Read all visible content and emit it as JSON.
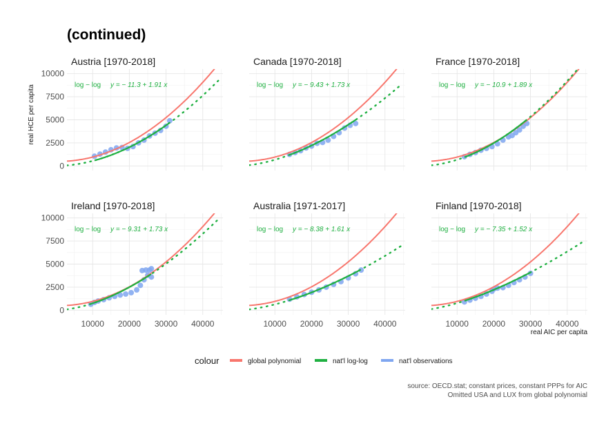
{
  "title": "(continued)",
  "colors": {
    "global_polynomial": "#F8766D",
    "natl_loglog": "#1FB041",
    "natl_obs": "#7FA6F0",
    "grid": "#e6e6e6"
  },
  "chart_data": {
    "type": "line",
    "xlabel": "real AIC per capita",
    "ylabel": "real HCE per capita",
    "xlim": [
      3000,
      45500
    ],
    "ylim": [
      -500,
      10500
    ],
    "x_ticks": [
      10000,
      20000,
      30000,
      40000
    ],
    "x_tick_labels": [
      "10000",
      "20000",
      "30000",
      "40000"
    ],
    "y_ticks": [
      0,
      2500,
      5000,
      7500,
      10000
    ],
    "y_tick_labels": [
      "0",
      "2500",
      "5000",
      "7500",
      "10000"
    ],
    "global_polynomial": {
      "description": "quadratic fit",
      "coef": [
        500,
        -0.01,
        5.6e-06
      ]
    },
    "panels": [
      {
        "strip": "Austria [1970-2018]",
        "eq_label": "log − log",
        "eq": "y = − 11.3 + 1.91 x",
        "a": -11.3,
        "b": 1.91,
        "obs_range": [
          10500,
          31000
        ],
        "obs_points": [
          [
            10500,
            1050
          ],
          [
            12000,
            1280
          ],
          [
            13500,
            1500
          ],
          [
            15000,
            1750
          ],
          [
            16500,
            1950
          ],
          [
            18000,
            2000
          ],
          [
            19500,
            1900
          ],
          [
            21000,
            2100
          ],
          [
            22500,
            2500
          ],
          [
            24000,
            2800
          ],
          [
            25500,
            3250
          ],
          [
            27000,
            3550
          ],
          [
            28500,
            3850
          ],
          [
            30000,
            4300
          ],
          [
            31000,
            4900
          ]
        ]
      },
      {
        "strip": "Canada [1970-2018]",
        "eq_label": "log − log",
        "eq": "y = − 9.43 + 1.73 x",
        "a": -9.43,
        "b": 1.73,
        "obs_range": [
          14000,
          32000
        ],
        "obs_points": [
          [
            14000,
            1250
          ],
          [
            15500,
            1450
          ],
          [
            17000,
            1650
          ],
          [
            18500,
            1950
          ],
          [
            20000,
            2150
          ],
          [
            21500,
            2450
          ],
          [
            23000,
            2550
          ],
          [
            24500,
            2800
          ],
          [
            26000,
            3200
          ],
          [
            27500,
            3600
          ],
          [
            29000,
            4100
          ],
          [
            30500,
            4400
          ],
          [
            32000,
            4600
          ]
        ]
      },
      {
        "strip": "France [1970-2018]",
        "eq_label": "log − log",
        "eq": "y = − 10.9 + 1.89 x",
        "a": -10.9,
        "b": 1.89,
        "obs_range": [
          12000,
          29000
        ],
        "obs_points": [
          [
            12000,
            1000
          ],
          [
            13500,
            1250
          ],
          [
            15000,
            1450
          ],
          [
            16500,
            1700
          ],
          [
            18000,
            1900
          ],
          [
            19500,
            2100
          ],
          [
            21000,
            2400
          ],
          [
            22500,
            2800
          ],
          [
            24000,
            3150
          ],
          [
            25000,
            3300
          ],
          [
            26000,
            3600
          ],
          [
            27000,
            3900
          ],
          [
            28000,
            4300
          ],
          [
            29000,
            4600
          ]
        ]
      },
      {
        "strip": "Ireland [1970-2018]",
        "eq_label": "log − log",
        "eq": "y = − 9.31 + 1.73 x",
        "a": -9.31,
        "b": 1.73,
        "obs_range": [
          9500,
          26000
        ],
        "obs_points": [
          [
            9500,
            650
          ],
          [
            10500,
            850
          ],
          [
            11500,
            1000
          ],
          [
            13000,
            1150
          ],
          [
            14500,
            1350
          ],
          [
            16000,
            1500
          ],
          [
            17500,
            1650
          ],
          [
            19000,
            1750
          ],
          [
            20500,
            1900
          ],
          [
            22000,
            2200
          ],
          [
            23000,
            2700
          ],
          [
            24000,
            3300
          ],
          [
            25000,
            3800
          ],
          [
            26000,
            3600
          ],
          [
            23500,
            4300
          ],
          [
            24500,
            4350
          ],
          [
            25500,
            4350
          ],
          [
            26000,
            4500
          ]
        ]
      },
      {
        "strip": "Australia [1971-2017]",
        "eq_label": "log − log",
        "eq": "y = − 8.38 + 1.61 x",
        "a": -8.38,
        "b": 1.61,
        "obs_range": [
          14000,
          33500
        ],
        "obs_points": [
          [
            14000,
            1200
          ],
          [
            16000,
            1450
          ],
          [
            18000,
            1700
          ],
          [
            20000,
            1950
          ],
          [
            22000,
            2200
          ],
          [
            24000,
            2500
          ],
          [
            26000,
            2800
          ],
          [
            28000,
            3100
          ],
          [
            30000,
            3500
          ],
          [
            32000,
            3950
          ],
          [
            33500,
            4350
          ]
        ]
      },
      {
        "strip": "Finland [1970-2018]",
        "eq_label": "log − log",
        "eq": "y = − 7.35 + 1.52 x",
        "a": -7.35,
        "b": 1.52,
        "obs_range": [
          12000,
          30000
        ],
        "obs_points": [
          [
            12000,
            900
          ],
          [
            13500,
            1100
          ],
          [
            15000,
            1300
          ],
          [
            16500,
            1500
          ],
          [
            18000,
            1750
          ],
          [
            19500,
            2050
          ],
          [
            20000,
            2300
          ],
          [
            21000,
            2400
          ],
          [
            22500,
            2450
          ],
          [
            24000,
            2700
          ],
          [
            25500,
            3000
          ],
          [
            27000,
            3300
          ],
          [
            28500,
            3600
          ],
          [
            30000,
            4000
          ]
        ]
      }
    ]
  },
  "legend": {
    "title": "colour",
    "items": [
      "global polynomial",
      "nat'l log-log",
      "nat'l observations"
    ]
  },
  "caption": {
    "line1": "source: OECD.stat; constant prices, constant PPPs for AIC",
    "line2": "Omitted USA and LUX from global polynomial"
  }
}
